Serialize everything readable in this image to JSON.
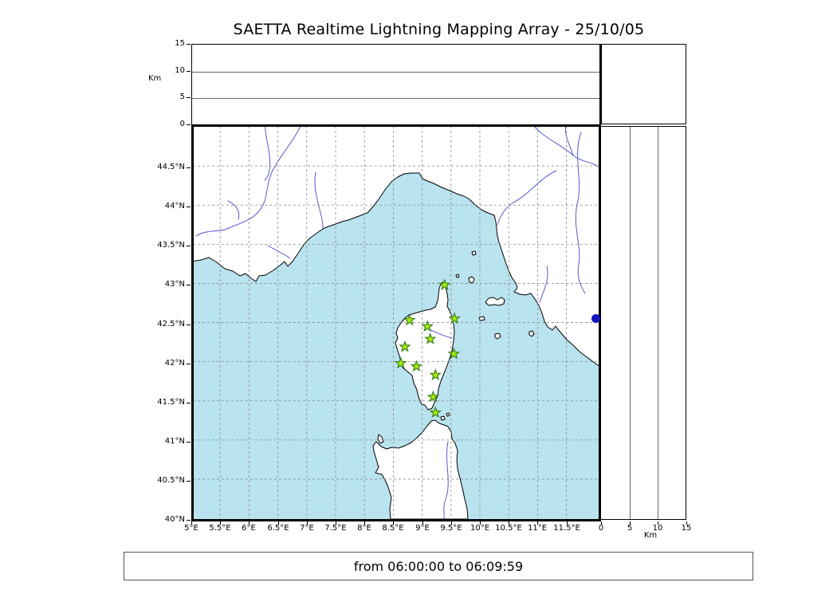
{
  "title": "SAETTA Realtime Lightning Mapping Array - 25/10/05",
  "time_bar": {
    "text": "from 06:00:00 to 06:09:59"
  },
  "axes": {
    "alt_label_top": "Km",
    "alt_label_right": "Km",
    "alt_ticks": [
      0,
      5,
      10,
      15
    ],
    "alt_tick_labels": [
      "0",
      "5",
      "10",
      "15"
    ],
    "lat_ticks": [
      44.5,
      44,
      43.5,
      43,
      42.5,
      42,
      41.5,
      41,
      40.5,
      40
    ],
    "lat_labels": [
      "44.5°N",
      "44°N",
      "43.5°N",
      "43°N",
      "42.5°N",
      "42°N",
      "41.5°N",
      "41°N",
      "40.5°N",
      "40°N"
    ],
    "lon_ticks": [
      5,
      5.5,
      6,
      6.5,
      7,
      7.5,
      8,
      8.5,
      9,
      9.5,
      10,
      10.5,
      11,
      11.5
    ],
    "lon_labels": [
      "5°E",
      "5.5°E",
      "6°E",
      "6.5°E",
      "7°E",
      "7.5°E",
      "8°E",
      "8.5°E",
      "9°E",
      "9.5°E",
      "10°E",
      "10.5°E",
      "11°E",
      "11.5°E"
    ]
  },
  "chart_data": {
    "type": "scatter",
    "title": "SAETTA Realtime Lightning Mapping Array - 25/10/05",
    "description": "Realtime lightning mapping display: plan-view map (lon/lat) with altitude cross-section panels; green stars are LMA sensor stations",
    "time_window": {
      "from": "06:00:00",
      "to": "06:09:59"
    },
    "main_panel": {
      "lon_range": [
        5,
        12.1
      ],
      "lat_range": [
        40,
        45.03
      ],
      "grid": true,
      "grid_step_deg": 0.5
    },
    "top_panel": {
      "ylabel": "Km",
      "ylim": [
        0,
        15
      ],
      "yticks": [
        0,
        5,
        10,
        15
      ],
      "points": []
    },
    "right_panel": {
      "xlabel": "Km",
      "xlim": [
        0,
        15
      ],
      "xticks": [
        0,
        5,
        10,
        15
      ],
      "points": [
        {
          "km": 0,
          "lat": 42.57
        }
      ]
    },
    "stations": [
      {
        "lon": 9.39,
        "lat": 42.98
      },
      {
        "lon": 8.78,
        "lat": 42.53
      },
      {
        "lon": 9.09,
        "lat": 42.45
      },
      {
        "lon": 9.56,
        "lat": 42.55
      },
      {
        "lon": 9.14,
        "lat": 42.29
      },
      {
        "lon": 8.7,
        "lat": 42.19
      },
      {
        "lon": 9.55,
        "lat": 42.1
      },
      {
        "lon": 8.63,
        "lat": 41.98
      },
      {
        "lon": 8.9,
        "lat": 41.94
      },
      {
        "lon": 9.23,
        "lat": 41.83
      },
      {
        "lon": 9.19,
        "lat": 41.55
      },
      {
        "lon": 9.23,
        "lat": 41.35
      }
    ]
  },
  "colors": {
    "sea": "#b9e3ee",
    "land": "#ffffff",
    "coast": "#000000",
    "river": "#4747cc",
    "grid": "#8a8a8a",
    "station_fill": "#aee809",
    "station_stroke": "#2e7d1e",
    "source_dot": "#1414c0"
  }
}
